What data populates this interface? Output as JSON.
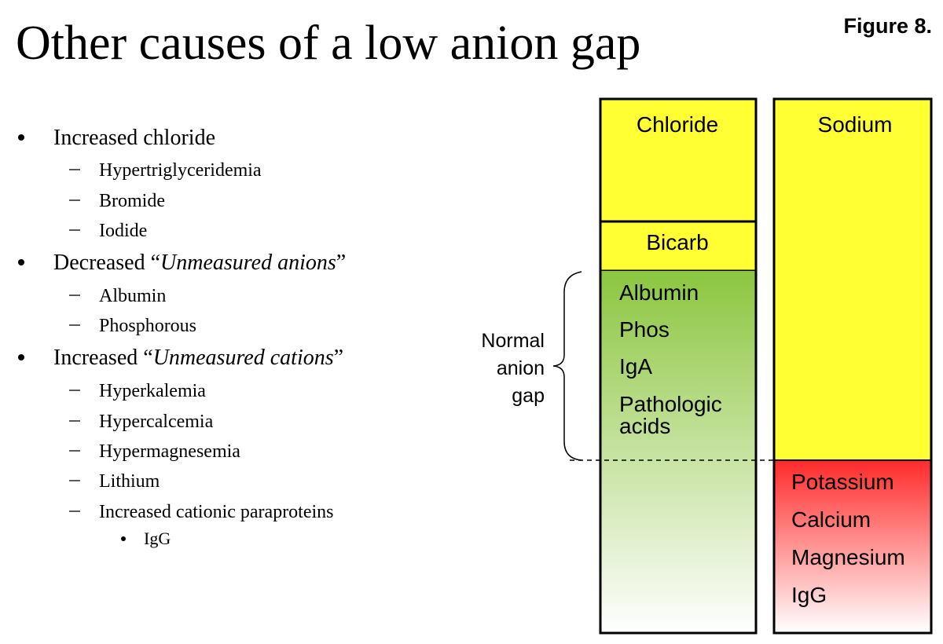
{
  "title": "Other causes of a low anion gap",
  "figure_label": "Figure 8.",
  "causes": [
    {
      "before": "Increased chloride",
      "italic": null,
      "after": null,
      "items": [
        {
          "text": "Hypertriglyceridemia"
        },
        {
          "text": "Bromide"
        },
        {
          "text": "Iodide"
        }
      ]
    },
    {
      "before": "Decreased “",
      "italic": "Unmeasured anions",
      "after": "”",
      "items": [
        {
          "text": "Albumin"
        },
        {
          "text": "Phosphorous"
        }
      ]
    },
    {
      "before": "Increased “",
      "italic": "Unmeasured cations",
      "after": "”",
      "items": [
        {
          "text": "Hyperkalemia"
        },
        {
          "text": "Hypercalcemia"
        },
        {
          "text": "Hypermagnesemia"
        },
        {
          "text": "Lithium"
        },
        {
          "text": "Increased cationic paraproteins",
          "items": [
            "IgG"
          ]
        }
      ]
    }
  ],
  "diagram": {
    "anions": {
      "chloride": "Chloride",
      "bicarb": "Bicarb",
      "unmeasured": [
        "Albumin",
        "Phos",
        "IgA",
        "Pathologic",
        "acids"
      ]
    },
    "cations": {
      "sodium": "Sodium",
      "unmeasured": [
        "Potassium",
        "Calcium",
        "Magnesium",
        "IgG"
      ]
    },
    "gap_label": [
      "Normal",
      "anion",
      "gap"
    ]
  }
}
